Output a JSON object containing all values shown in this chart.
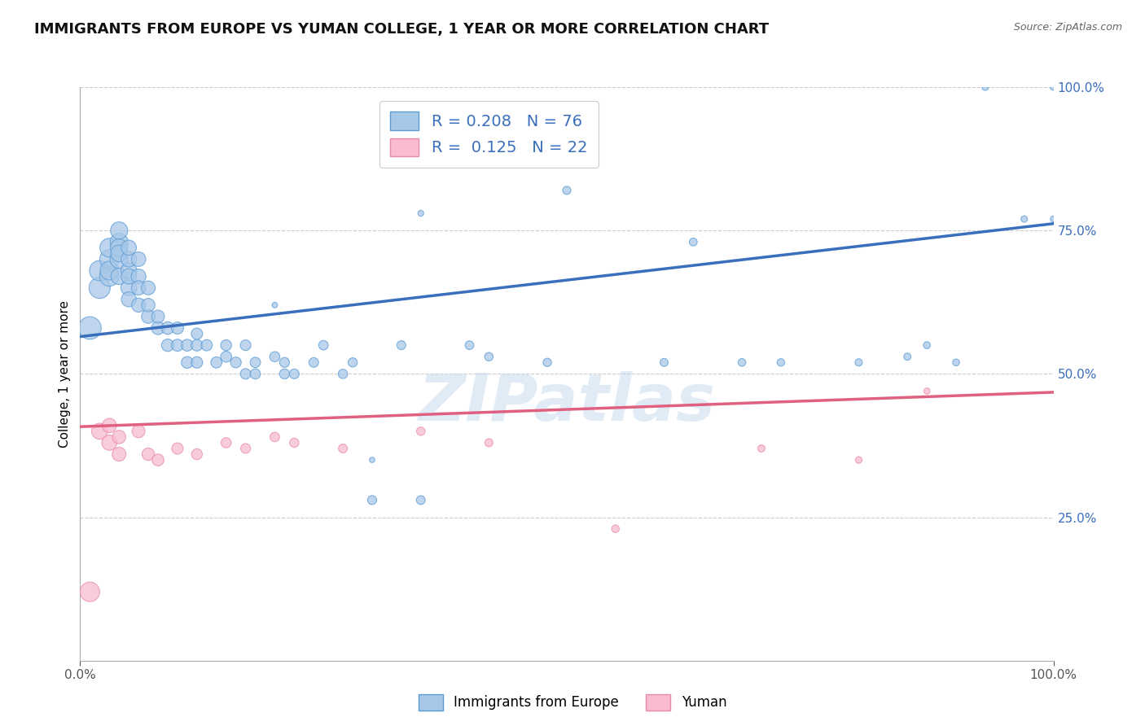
{
  "title": "IMMIGRANTS FROM EUROPE VS YUMAN COLLEGE, 1 YEAR OR MORE CORRELATION CHART",
  "source_text": "Source: ZipAtlas.com",
  "ylabel": "College, 1 year or more",
  "xlim": [
    0.0,
    1.0
  ],
  "ylim": [
    0.0,
    1.0
  ],
  "ytick_positions": [
    0.25,
    0.5,
    0.75,
    1.0
  ],
  "legend_R_blue": "0.208",
  "legend_N_blue": "76",
  "legend_R_pink": "0.125",
  "legend_N_pink": "22",
  "blue_color": "#a8c8e8",
  "blue_edge_color": "#5b9bd5",
  "blue_line_color": "#3a6fbd",
  "pink_color": "#f8bbd0",
  "pink_edge_color": "#e88aaa",
  "pink_line_color": "#e06080",
  "watermark_text": "ZIPatlas",
  "blue_scatter_x": [
    0.01,
    0.02,
    0.02,
    0.03,
    0.03,
    0.03,
    0.03,
    0.04,
    0.04,
    0.04,
    0.04,
    0.04,
    0.04,
    0.05,
    0.05,
    0.05,
    0.05,
    0.05,
    0.05,
    0.06,
    0.06,
    0.06,
    0.06,
    0.07,
    0.07,
    0.07,
    0.08,
    0.08,
    0.09,
    0.09,
    0.1,
    0.1,
    0.11,
    0.11,
    0.12,
    0.12,
    0.12,
    0.13,
    0.14,
    0.15,
    0.15,
    0.16,
    0.17,
    0.17,
    0.18,
    0.18,
    0.2,
    0.21,
    0.21,
    0.22,
    0.24,
    0.25,
    0.27,
    0.28,
    0.3,
    0.33,
    0.35,
    0.4,
    0.42,
    0.48,
    0.5,
    0.6,
    0.63,
    0.68,
    0.72,
    0.8,
    0.85,
    0.87,
    0.9,
    0.93,
    0.97,
    1.0,
    1.0,
    0.35,
    0.2,
    0.3
  ],
  "blue_scatter_y": [
    0.58,
    0.65,
    0.68,
    0.67,
    0.7,
    0.72,
    0.68,
    0.7,
    0.73,
    0.72,
    0.75,
    0.71,
    0.67,
    0.68,
    0.65,
    0.7,
    0.67,
    0.72,
    0.63,
    0.67,
    0.7,
    0.65,
    0.62,
    0.65,
    0.6,
    0.62,
    0.58,
    0.6,
    0.58,
    0.55,
    0.58,
    0.55,
    0.55,
    0.52,
    0.55,
    0.52,
    0.57,
    0.55,
    0.52,
    0.53,
    0.55,
    0.52,
    0.55,
    0.5,
    0.52,
    0.5,
    0.53,
    0.5,
    0.52,
    0.5,
    0.52,
    0.55,
    0.5,
    0.52,
    0.28,
    0.55,
    0.28,
    0.55,
    0.53,
    0.52,
    0.82,
    0.52,
    0.73,
    0.52,
    0.52,
    0.52,
    0.53,
    0.55,
    0.52,
    1.0,
    0.77,
    1.0,
    0.77,
    0.78,
    0.62,
    0.35
  ],
  "blue_scatter_sizes": [
    400,
    350,
    320,
    300,
    290,
    280,
    270,
    260,
    250,
    240,
    230,
    220,
    210,
    200,
    195,
    190,
    185,
    180,
    175,
    170,
    165,
    160,
    155,
    150,
    145,
    140,
    135,
    130,
    125,
    120,
    115,
    112,
    110,
    108,
    105,
    102,
    100,
    98,
    96,
    94,
    92,
    90,
    88,
    86,
    84,
    82,
    80,
    78,
    76,
    74,
    72,
    70,
    68,
    66,
    64,
    62,
    60,
    58,
    56,
    54,
    52,
    50,
    48,
    46,
    44,
    42,
    40,
    38,
    36,
    34,
    32,
    30,
    28,
    26,
    24,
    22
  ],
  "pink_scatter_x": [
    0.01,
    0.02,
    0.03,
    0.03,
    0.04,
    0.04,
    0.06,
    0.07,
    0.08,
    0.1,
    0.12,
    0.15,
    0.17,
    0.2,
    0.22,
    0.27,
    0.35,
    0.42,
    0.55,
    0.7,
    0.8,
    0.87
  ],
  "pink_scatter_y": [
    0.12,
    0.4,
    0.38,
    0.41,
    0.36,
    0.39,
    0.4,
    0.36,
    0.35,
    0.37,
    0.36,
    0.38,
    0.37,
    0.39,
    0.38,
    0.37,
    0.4,
    0.38,
    0.23,
    0.37,
    0.35,
    0.47
  ],
  "pink_scatter_sizes": [
    300,
    200,
    180,
    160,
    150,
    140,
    130,
    120,
    110,
    100,
    90,
    80,
    75,
    70,
    65,
    60,
    55,
    50,
    45,
    40,
    35,
    30
  ],
  "blue_line_x0": 0.0,
  "blue_line_y0": 0.565,
  "blue_line_x1": 1.0,
  "blue_line_y1": 0.762,
  "pink_line_x0": 0.0,
  "pink_line_y0": 0.408,
  "pink_line_x1": 1.0,
  "pink_line_y1": 0.468,
  "grid_color": "#cccccc",
  "background_color": "#ffffff",
  "title_fontsize": 13,
  "axis_label_fontsize": 11,
  "tick_fontsize": 11,
  "legend_fontsize": 14
}
